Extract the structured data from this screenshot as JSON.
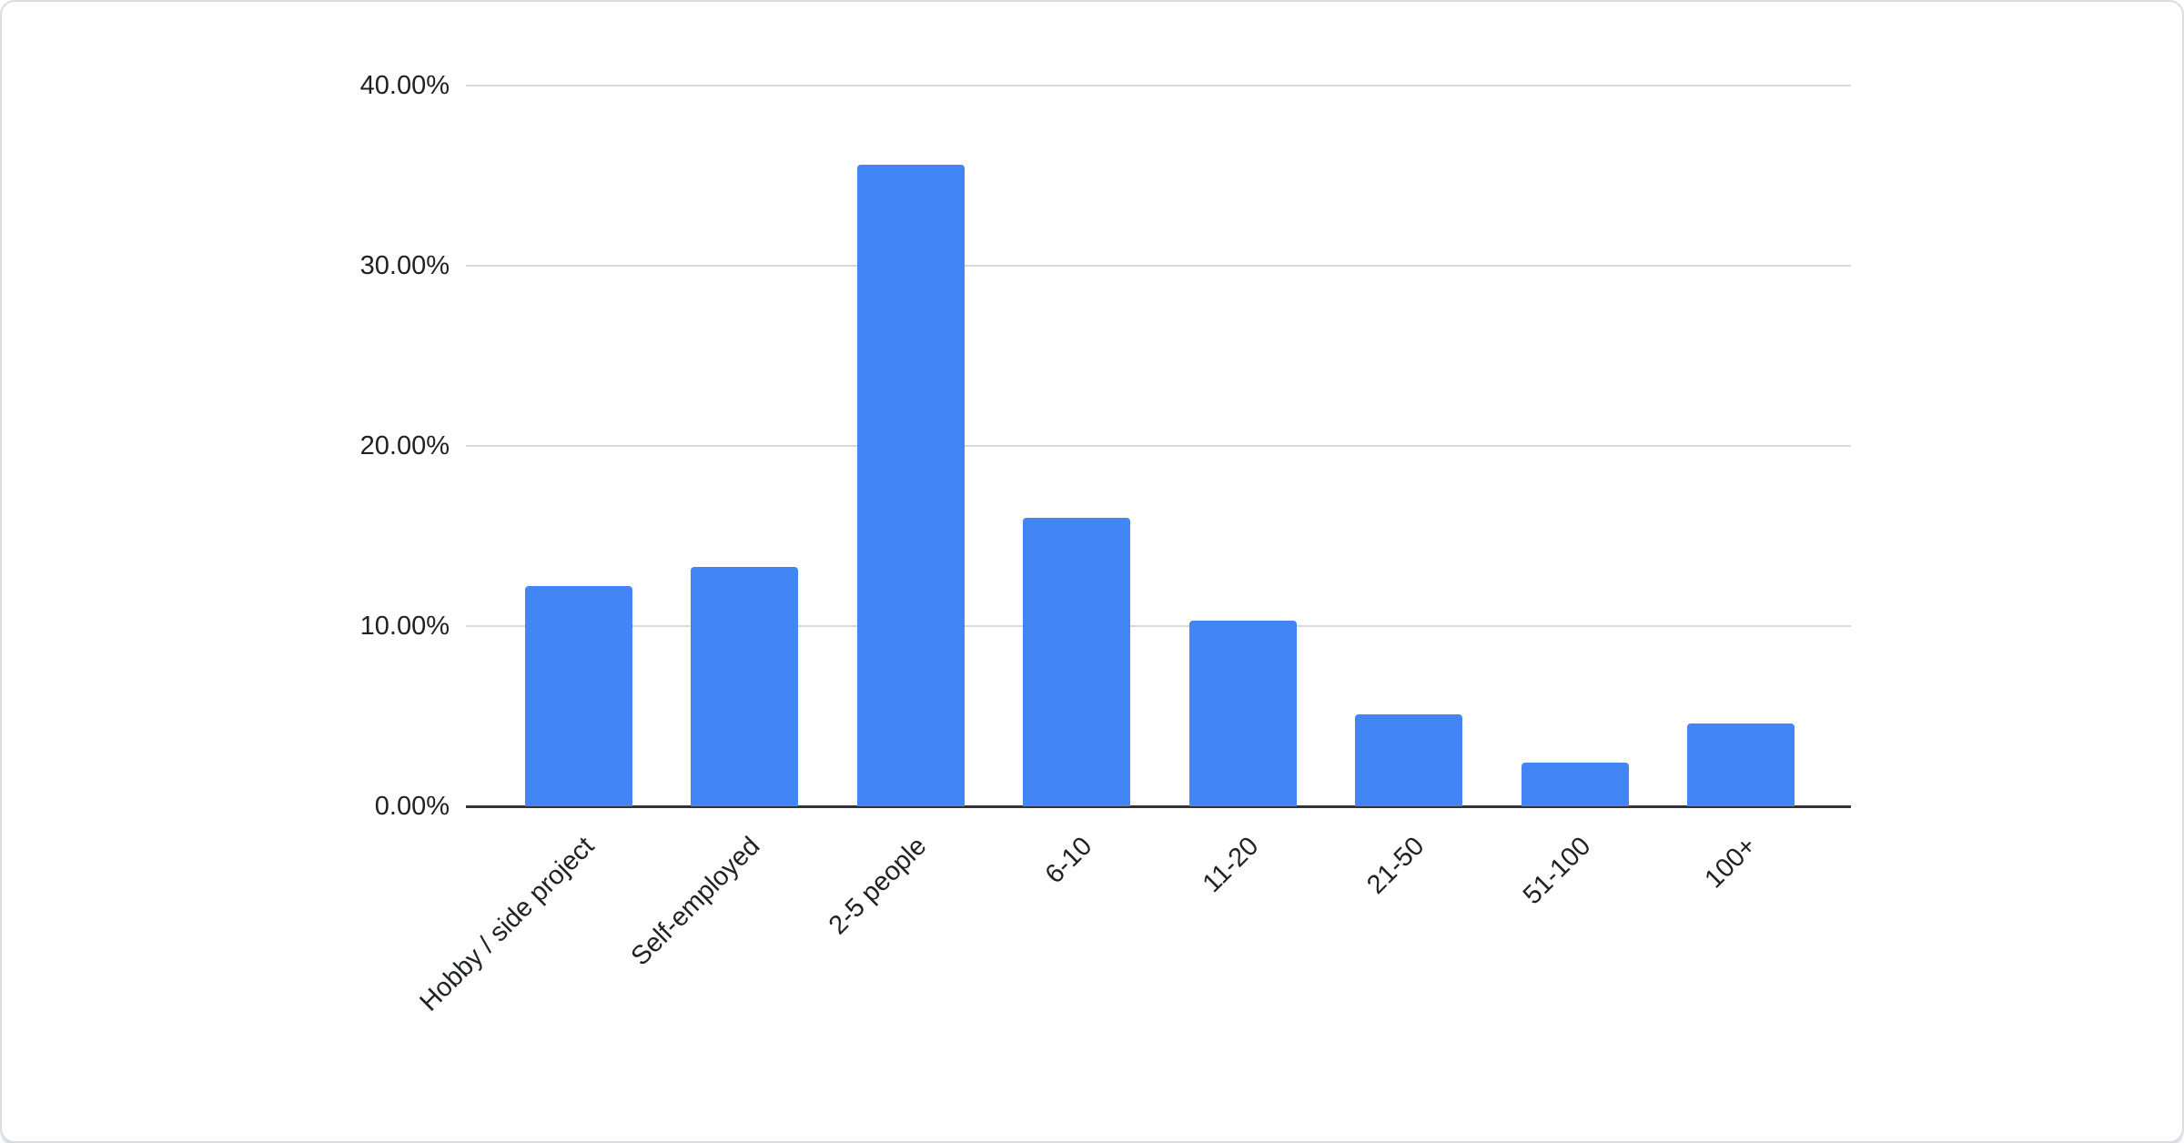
{
  "chart_data": {
    "type": "bar",
    "title": "",
    "xlabel": "",
    "ylabel": "",
    "categories": [
      "Hobby / side project",
      "Self-employed",
      "2-5 people",
      "6-10",
      "11-20",
      "21-50",
      "51-100",
      "100+"
    ],
    "values": [
      12.2,
      13.3,
      35.6,
      16.0,
      10.3,
      5.1,
      2.4,
      4.6
    ],
    "value_unit": "%",
    "y_ticks": [
      "40.00%",
      "30.00%",
      "20.00%",
      "10.00%",
      "0.00%"
    ],
    "y_tick_values": [
      40,
      30,
      20,
      10,
      0
    ],
    "ylim": [
      0,
      40
    ],
    "grid": true,
    "legend": "none",
    "x_label_rotation_deg": -45,
    "colors": {
      "bar": "#4285F4",
      "gridline": "#d9d9d9",
      "axis_line": "#333333",
      "tick_label": "#202124",
      "card_background": "#ffffff",
      "card_border": "#dadce0"
    }
  }
}
